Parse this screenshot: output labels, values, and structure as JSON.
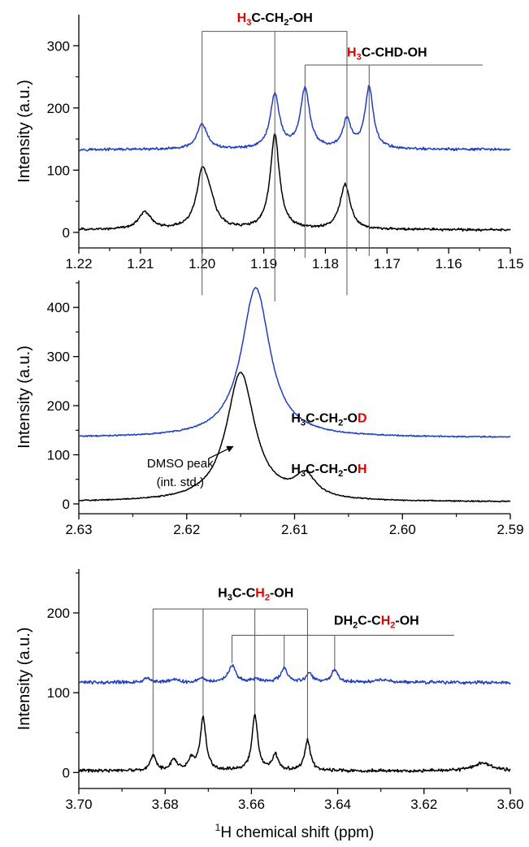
{
  "chart_data": [
    {
      "type": "line",
      "ylabel": "Intensity (a.u.)",
      "xlim": [
        1.22,
        1.15
      ],
      "ylim": [
        -25,
        350
      ],
      "xticks": [
        "1.22",
        "1.21",
        "1.20",
        "1.19",
        "1.18",
        "1.17",
        "1.16",
        "1.15"
      ],
      "yticks": [
        "0",
        "100",
        "200",
        "300"
      ],
      "series": [
        {
          "color": "#1f3fbf",
          "baseline": 133,
          "noise": 1.8,
          "peaks": [
            [
              1.2,
              40,
              0.001
            ],
            [
              1.1882,
              87,
              0.0009
            ],
            [
              1.1833,
              96,
              0.0009
            ],
            [
              1.1765,
              46,
              0.0008
            ],
            [
              1.1729,
              99,
              0.0008
            ]
          ]
        },
        {
          "color": "#000000",
          "baseline": 4,
          "noise": 1.8,
          "peaks": [
            [
              1.2093,
              28,
              0.0012
            ],
            [
              1.2,
              82,
              0.0011
            ],
            [
              1.1988,
              35,
              0.0012
            ],
            [
              1.1882,
              152,
              0.0009
            ],
            [
              1.1768,
              72,
              0.001
            ]
          ]
        }
      ],
      "annotations": [
        {
          "parts": [
            {
              "t": "H",
              "red": true
            },
            {
              "t": "3",
              "sub": true,
              "red": true
            },
            {
              "t": "C-CH"
            },
            {
              "t": "2",
              "sub": true
            },
            {
              "t": "-OH"
            }
          ],
          "x": 1.1882,
          "y": 338
        },
        {
          "parts": [
            {
              "t": "H",
              "red": true
            },
            {
              "t": "3",
              "sub": true,
              "red": true
            },
            {
              "t": "C-CHD-OH"
            }
          ],
          "x": 1.17,
          "y": 283
        }
      ],
      "brackets": [
        {
          "y": 323,
          "x0": 1.2,
          "x1": 1.1765,
          "drops": [
            [
              1.2,
              -101
            ],
            [
              1.1882,
              -111
            ],
            [
              1.1765,
              -101
            ]
          ]
        },
        {
          "y": 269,
          "x0": 1.1833,
          "x1": 1.1545,
          "drops": [
            [
              1.1833,
              -41
            ],
            [
              1.1729,
              -38
            ]
          ]
        }
      ]
    },
    {
      "type": "line",
      "ylabel": "Intensity (a.u.)",
      "xlim": [
        2.63,
        2.59
      ],
      "ylim": [
        -20,
        455
      ],
      "xticks": [
        "2.63",
        "2.62",
        "2.61",
        "2.60",
        "2.59"
      ],
      "yticks": [
        "0",
        "100",
        "200",
        "300",
        "400"
      ],
      "series": [
        {
          "color": "#1f3fbf",
          "baseline": 135,
          "noise": 1.2,
          "peaks": [
            [
              2.6136,
              305,
              0.0016
            ]
          ]
        },
        {
          "color": "#000000",
          "baseline": 4,
          "noise": 1.0,
          "peaks": [
            [
              2.615,
              262,
              0.0016
            ],
            [
              2.609,
              46,
              0.0012
            ]
          ]
        }
      ],
      "annotations": [
        {
          "parts": [
            {
              "t": "H"
            },
            {
              "t": "3",
              "sub": true
            },
            {
              "t": "C-CH"
            },
            {
              "t": "2",
              "sub": true
            },
            {
              "t": "-O"
            },
            {
              "t": "D",
              "red": true
            }
          ],
          "x": 2.6068,
          "y": 166
        },
        {
          "parts": [
            {
              "t": "H"
            },
            {
              "t": "3",
              "sub": true
            },
            {
              "t": "C-CH"
            },
            {
              "t": "2",
              "sub": true
            },
            {
              "t": "-O"
            },
            {
              "t": "H",
              "red": true
            }
          ],
          "x": 2.6068,
          "y": 63
        }
      ],
      "notes": [
        {
          "text": "DMSO peak",
          "x": 2.6206,
          "y": 74
        },
        {
          "text": "(int. std.)",
          "x": 2.6206,
          "y": 36
        }
      ],
      "arrow": {
        "from": [
          2.618,
          92
        ],
        "to": [
          2.6157,
          117
        ]
      }
    },
    {
      "type": "line",
      "ylabel": "Intensity (a.u.)",
      "xlabel": {
        "sup": "1",
        "text": "H chemical shift (ppm)"
      },
      "xlim": [
        3.7,
        3.6
      ],
      "ylim": [
        -20,
        255
      ],
      "xticks": [
        "3.70",
        "3.68",
        "3.66",
        "3.64",
        "3.62",
        "3.60"
      ],
      "yticks": [
        "0",
        "100",
        "200"
      ],
      "series": [
        {
          "color": "#1f3fbf",
          "baseline": 113,
          "noise": 1.8,
          "peaks": [
            [
              3.6645,
              21,
              0.001
            ],
            [
              3.6524,
              17,
              0.001
            ],
            [
              3.6466,
              11,
              0.0009
            ],
            [
              3.6407,
              15,
              0.0009
            ],
            [
              3.684,
              5,
              0.001
            ],
            [
              3.678,
              4,
              0.001
            ],
            [
              3.6715,
              5,
              0.001
            ],
            [
              3.659,
              4,
              0.001
            ],
            [
              3.63,
              3,
              0.002
            ]
          ]
        },
        {
          "color": "#000000",
          "baseline": 2,
          "noise": 1.8,
          "peaks": [
            [
              3.6828,
              19,
              0.0008
            ],
            [
              3.678,
              14,
              0.0008
            ],
            [
              3.674,
              14,
              0.0008
            ],
            [
              3.6712,
              66,
              0.0008
            ],
            [
              3.6592,
              70,
              0.0008
            ],
            [
              3.6545,
              20,
              0.0008
            ],
            [
              3.647,
              38,
              0.0008
            ],
            [
              3.6065,
              10,
              0.0025
            ]
          ]
        }
      ],
      "annotations": [
        {
          "parts": [
            {
              "t": "H"
            },
            {
              "t": "3",
              "sub": true
            },
            {
              "t": "C-C"
            },
            {
              "t": "H",
              "red": true
            },
            {
              "t": "2",
              "sub": true,
              "red": true
            },
            {
              "t": "-OH"
            }
          ],
          "x": 3.659,
          "y": 220
        },
        {
          "parts": [
            {
              "t": "DH"
            },
            {
              "t": "2",
              "sub": true
            },
            {
              "t": "C-C"
            },
            {
              "t": "H",
              "red": true
            },
            {
              "t": "2",
              "sub": true,
              "red": true
            },
            {
              "t": "-OH"
            }
          ],
          "x": 3.631,
          "y": 185
        }
      ],
      "brackets": [
        {
          "y": 205,
          "x0": 3.6828,
          "x1": 3.647,
          "drops": [
            [
              3.6828,
              23
            ],
            [
              3.6712,
              72
            ],
            [
              3.6592,
              73
            ],
            [
              3.647,
              43
            ]
          ]
        },
        {
          "y": 172,
          "x0": 3.6645,
          "x1": 3.613,
          "drops": [
            [
              3.6645,
              137
            ],
            [
              3.6524,
              133
            ],
            [
              3.6407,
              130
            ]
          ]
        }
      ]
    }
  ]
}
